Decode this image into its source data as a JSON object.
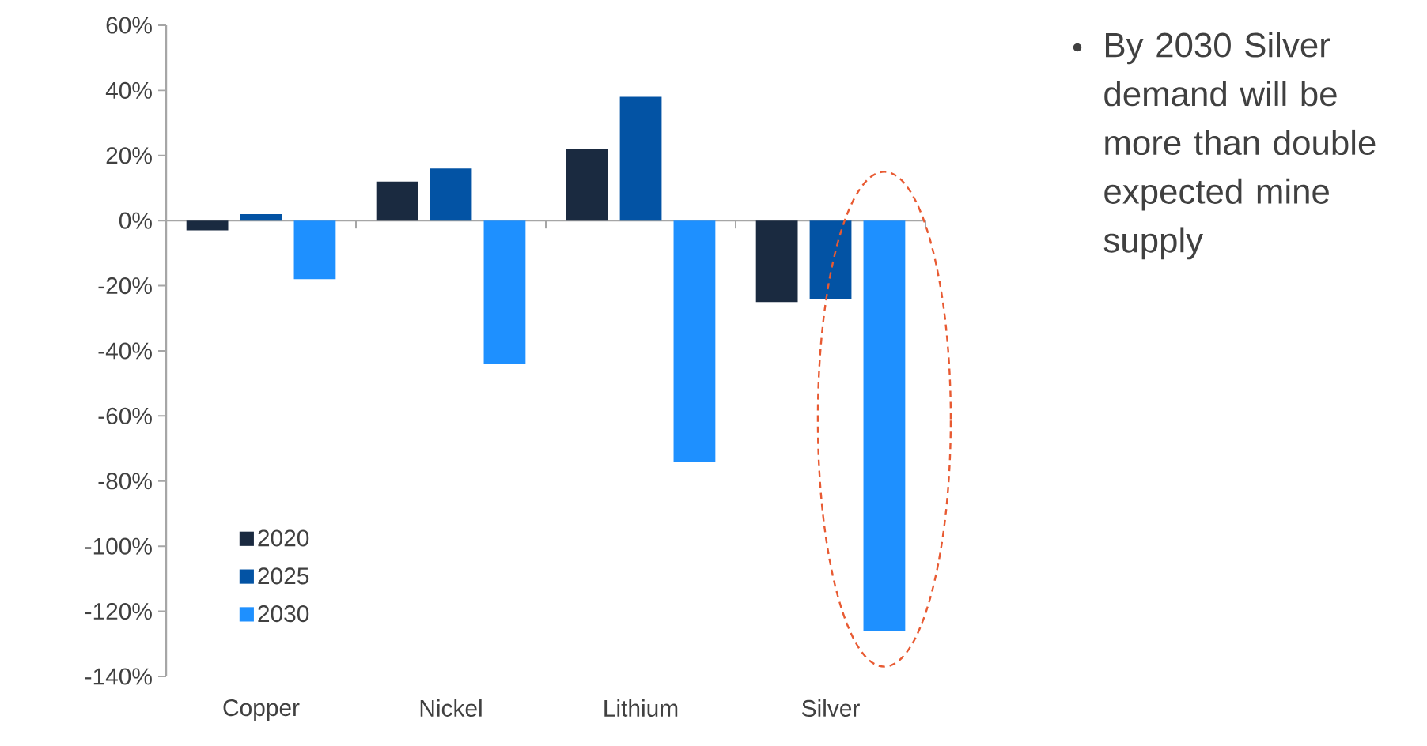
{
  "chart_data": {
    "type": "bar",
    "categories": [
      "Copper",
      "Nickel",
      "Lithium",
      "Silver"
    ],
    "series": [
      {
        "name": "2020",
        "color": "#1a2a40",
        "values": [
          -3,
          12,
          22,
          -25
        ]
      },
      {
        "name": "2025",
        "color": "#0353a4",
        "values": [
          2,
          16,
          38,
          -24
        ]
      },
      {
        "name": "2030",
        "color": "#1e90ff",
        "values": [
          -18,
          -44,
          -74,
          -126
        ]
      }
    ],
    "ylim": [
      -140,
      60
    ],
    "yticks": [
      {
        "value": 60,
        "label": "60%"
      },
      {
        "value": 40,
        "label": "40%"
      },
      {
        "value": 20,
        "label": "20%"
      },
      {
        "value": 0,
        "label": "0%"
      },
      {
        "value": -20,
        "label": "-20%"
      },
      {
        "value": -40,
        "label": "-40%"
      },
      {
        "value": -60,
        "label": "-60%"
      },
      {
        "value": -80,
        "label": "-80%"
      },
      {
        "value": -100,
        "label": "-100%"
      },
      {
        "value": -120,
        "label": "-120%"
      },
      {
        "value": -140,
        "label": "-140%"
      }
    ],
    "legend": "bottom left",
    "annotations": [
      "By 2030 Silver demand will be more than double expected mine supply"
    ]
  }
}
